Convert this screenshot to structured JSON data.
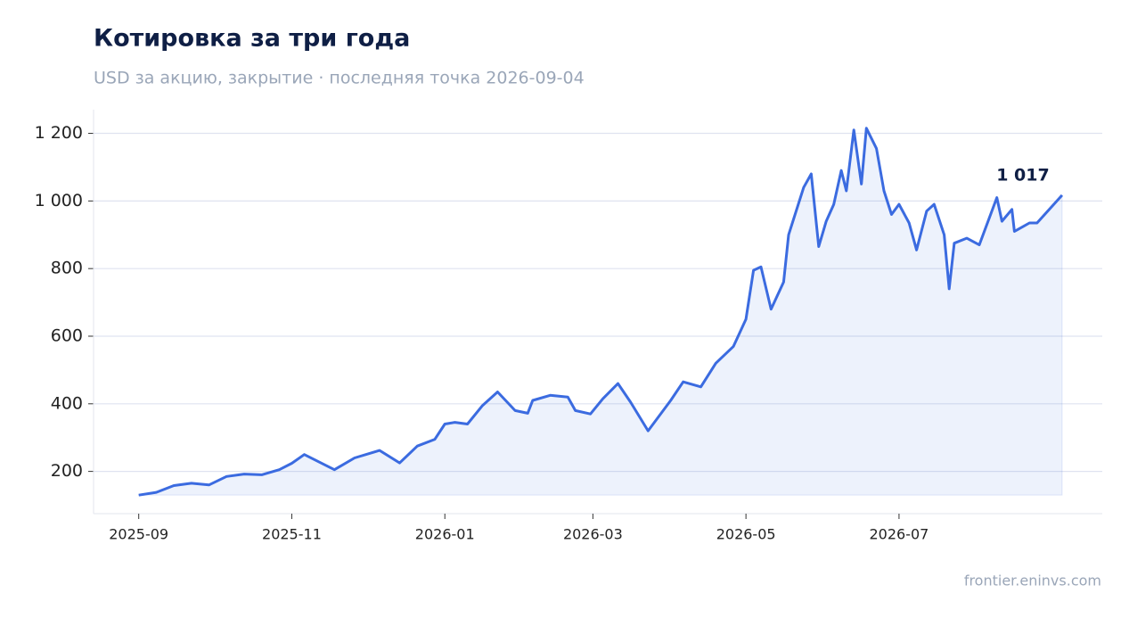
{
  "chart_data": {
    "type": "line",
    "title": "Котировка за три года",
    "subtitle": "USD за акцию, закрытие · последняя точка 2026-09-04",
    "source": "frontier.eninvs.com",
    "x": [
      "2025-09-01",
      "2025-09-08",
      "2025-09-15",
      "2025-09-22",
      "2025-09-29",
      "2025-10-06",
      "2025-10-13",
      "2025-10-20",
      "2025-10-27",
      "2025-11-01",
      "2025-11-06",
      "2025-11-18",
      "2025-11-26",
      "2025-12-06",
      "2025-12-14",
      "2025-12-21",
      "2025-12-28",
      "2026-01-01",
      "2026-01-05",
      "2026-01-10",
      "2026-01-16",
      "2026-01-22",
      "2026-01-29",
      "2026-02-03",
      "2026-02-05",
      "2026-02-12",
      "2026-02-19",
      "2026-02-22",
      "2026-02-28",
      "2026-03-05",
      "2026-03-11",
      "2026-03-16",
      "2026-03-23",
      "2026-04-01",
      "2026-04-06",
      "2026-04-13",
      "2026-04-19",
      "2026-04-26",
      "2026-05-01",
      "2026-05-04",
      "2026-05-07",
      "2026-05-11",
      "2026-05-16",
      "2026-05-18",
      "2026-05-24",
      "2026-05-27",
      "2026-05-30",
      "2026-06-02",
      "2026-06-05",
      "2026-06-08",
      "2026-06-10",
      "2026-06-13",
      "2026-06-16",
      "2026-06-18",
      "2026-06-22",
      "2026-06-25",
      "2026-06-28",
      "2026-07-01",
      "2026-07-05",
      "2026-07-08",
      "2026-07-12",
      "2026-07-15",
      "2026-07-19",
      "2026-07-21",
      "2026-07-23",
      "2026-07-28",
      "2026-08-02",
      "2026-08-09",
      "2026-08-11",
      "2026-08-15",
      "2026-08-16",
      "2026-08-22",
      "2026-08-25",
      "2026-09-04"
    ],
    "values": [
      130,
      138,
      158,
      165,
      160,
      185,
      192,
      190,
      205,
      224,
      250,
      205,
      240,
      262,
      225,
      275,
      295,
      340,
      345,
      340,
      395,
      435,
      380,
      372,
      410,
      425,
      420,
      380,
      370,
      415,
      460,
      405,
      320,
      410,
      465,
      450,
      520,
      570,
      650,
      795,
      805,
      680,
      760,
      900,
      1040,
      1080,
      865,
      940,
      990,
      1090,
      1030,
      1210,
      1050,
      1215,
      1155,
      1030,
      960,
      990,
      935,
      855,
      970,
      990,
      900,
      740,
      875,
      890,
      870,
      1010,
      940,
      975,
      910,
      935,
      935,
      1017
    ],
    "color": "#3b6be0",
    "annotation": {
      "value": 1017,
      "label": "1 017"
    },
    "xlim": [
      "2025-08-14",
      "2026-09-20"
    ],
    "xticks": [
      "2025-09",
      "2025-11",
      "2026-01",
      "2026-03",
      "2026-05",
      "2026-07"
    ],
    "ylim": [
      75,
      1270
    ],
    "yticks": [
      200,
      400,
      600,
      800,
      {
        "value": 1000,
        "label": "1 000"
      },
      {
        "value": 1200,
        "label": "1 200"
      }
    ],
    "grid": true
  }
}
